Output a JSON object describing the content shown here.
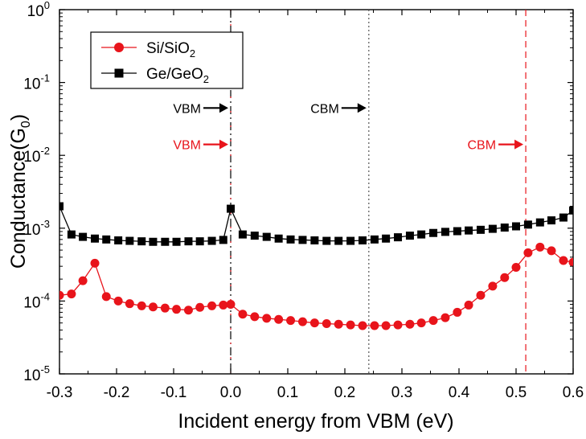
{
  "chart_data": {
    "type": "line",
    "title": "",
    "xlabel": "Incident energy from VBM (eV)",
    "ylabel": "Conductance(G",
    "ylabel_sub": "0",
    "ylabel_close": ")",
    "yscale": "log",
    "xlim": [
      -0.3,
      0.6
    ],
    "ylim_exp": [
      -5,
      0
    ],
    "xticks": [
      -0.3,
      -0.2,
      -0.1,
      0.0,
      0.1,
      0.2,
      0.3,
      0.4,
      0.5,
      0.6
    ],
    "xtick_labels": [
      "-0.3",
      "-0.2",
      "-0.1",
      "0.0",
      "0.1",
      "0.2",
      "0.3",
      "0.4",
      "0.5",
      "0.6"
    ],
    "ytick_exps": [
      -5,
      -4,
      -3,
      -2,
      -1,
      0
    ],
    "ytick_base": "10",
    "ytick_exp_labels": [
      "-5",
      "-4",
      "-3",
      "-2",
      "-1",
      "0"
    ],
    "series": [
      {
        "name": "Si/SiO",
        "name_sub": "2",
        "color": "#e8141b",
        "marker": "circle",
        "x": [
          -0.3,
          -0.279,
          -0.259,
          -0.238,
          -0.218,
          -0.197,
          -0.177,
          -0.156,
          -0.136,
          -0.115,
          -0.095,
          -0.074,
          -0.054,
          -0.033,
          -0.013,
          0.0,
          0.021,
          0.042,
          0.063,
          0.084,
          0.105,
          0.126,
          0.147,
          0.168,
          0.189,
          0.21,
          0.231,
          0.252,
          0.272,
          0.293,
          0.314,
          0.334,
          0.355,
          0.376,
          0.397,
          0.417,
          0.438,
          0.459,
          0.48,
          0.5,
          0.521,
          0.542,
          0.562,
          0.583,
          0.6
        ],
        "values": [
          0.00012,
          0.000125,
          0.00019,
          0.00033,
          0.000115,
          0.0001,
          9.2e-05,
          8.6e-05,
          8.3e-05,
          8e-05,
          7.7e-05,
          7.5e-05,
          8.2e-05,
          8.6e-05,
          8.8e-05,
          9e-05,
          6.6e-05,
          6.1e-05,
          5.8e-05,
          5.6e-05,
          5.4e-05,
          5.2e-05,
          5e-05,
          4.9e-05,
          4.8e-05,
          4.7e-05,
          4.6e-05,
          4.6e-05,
          4.6e-05,
          4.7e-05,
          4.8e-05,
          5e-05,
          5.4e-05,
          5.9e-05,
          7e-05,
          8.8e-05,
          0.00012,
          0.00016,
          0.00021,
          0.00029,
          0.00046,
          0.00055,
          0.00049,
          0.00036,
          0.00034
        ]
      },
      {
        "name": "Ge/GeO",
        "name_sub": "2",
        "color": "#000000",
        "marker": "square",
        "x": [
          -0.3,
          -0.279,
          -0.259,
          -0.238,
          -0.218,
          -0.197,
          -0.177,
          -0.156,
          -0.136,
          -0.115,
          -0.095,
          -0.074,
          -0.054,
          -0.033,
          -0.013,
          0.0,
          0.021,
          0.042,
          0.063,
          0.084,
          0.105,
          0.126,
          0.147,
          0.168,
          0.189,
          0.21,
          0.231,
          0.252,
          0.272,
          0.293,
          0.314,
          0.334,
          0.355,
          0.376,
          0.397,
          0.417,
          0.438,
          0.459,
          0.48,
          0.5,
          0.521,
          0.542,
          0.562,
          0.583,
          0.6
        ],
        "values": [
          0.002,
          0.00082,
          0.00076,
          0.00072,
          0.0007,
          0.00068,
          0.00067,
          0.00066,
          0.00065,
          0.00065,
          0.00065,
          0.00066,
          0.00066,
          0.00067,
          0.00069,
          0.00185,
          0.00082,
          0.00079,
          0.00076,
          0.00072,
          0.0007,
          0.00069,
          0.00068,
          0.00067,
          0.00067,
          0.00067,
          0.00068,
          0.0007,
          0.00072,
          0.00075,
          0.00079,
          0.00082,
          0.00086,
          0.00089,
          0.00091,
          0.00093,
          0.00095,
          0.00098,
          0.00102,
          0.00106,
          0.00112,
          0.0012,
          0.00128,
          0.0014,
          0.00175
        ]
      }
    ],
    "vlines": [
      {
        "x": 0.0,
        "color": "#000000",
        "style": "dashdot"
      },
      {
        "x": 0.0,
        "color": "#e8141b",
        "style": "dashdot-red"
      },
      {
        "x": 0.242,
        "color": "#555555",
        "style": "dotted"
      },
      {
        "x": 0.517,
        "color": "#e8141b",
        "style": "dashed"
      }
    ],
    "annotations": [
      {
        "text": "VBM",
        "color": "#000000",
        "x": 0.0,
        "y_exp": -1.35
      },
      {
        "text": "VBM",
        "color": "#e8141b",
        "x": 0.0,
        "y_exp": -1.85
      },
      {
        "text": "CBM",
        "color": "#000000",
        "x": 0.242,
        "y_exp": -1.35
      },
      {
        "text": "CBM",
        "color": "#e8141b",
        "x": 0.517,
        "y_exp": -1.85
      }
    ],
    "legend_position": "top-left",
    "grid": false
  }
}
